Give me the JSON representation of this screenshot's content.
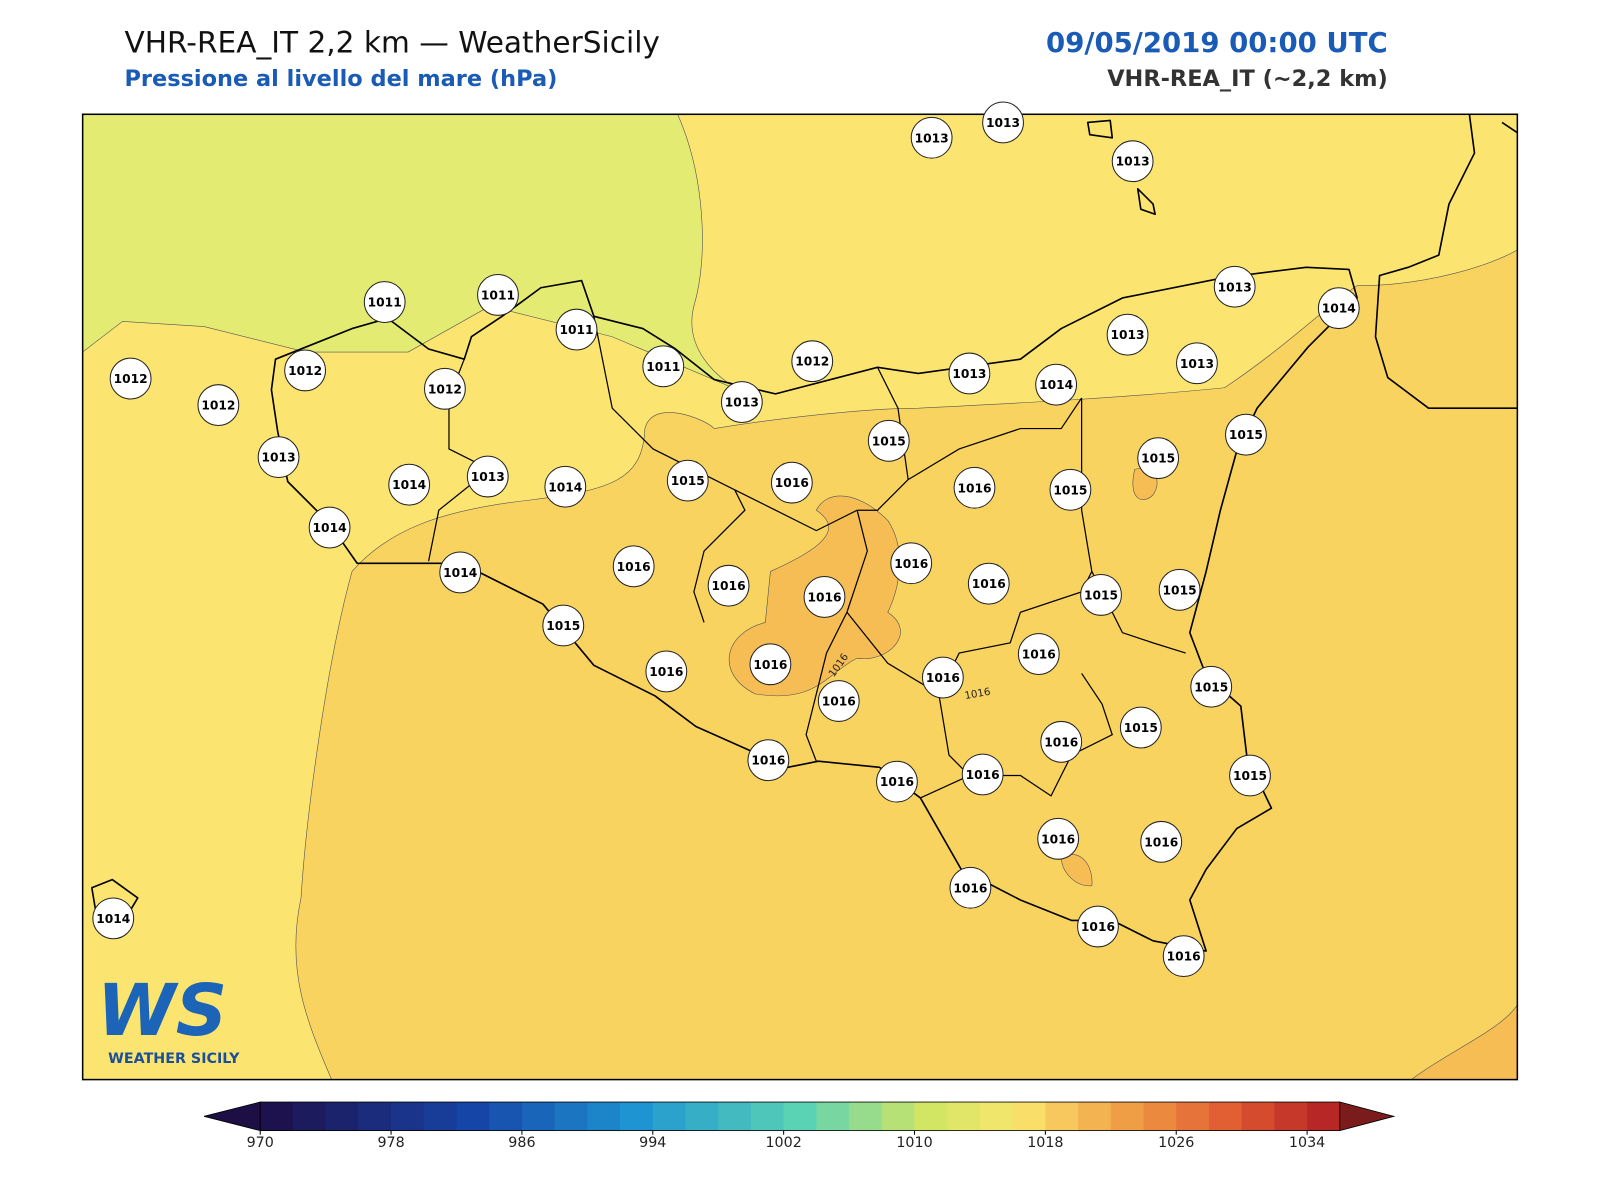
{
  "header": {
    "title": "VHR-REA_IT 2,2 km — WeatherSicily",
    "subtitle": "Pressione al livello del mare (hPa)",
    "datetime": "09/05/2019 00:00 UTC",
    "model": "VHR-REA_IT (~2,2 km)"
  },
  "stations": [
    1013,
    1013,
    1013,
    1011,
    1011,
    1011,
    1012,
    1012,
    1012,
    1011,
    1013,
    1012,
    1013,
    1014,
    1013,
    1013,
    1013,
    1014,
    1012,
    1013,
    1014,
    1013,
    1014,
    1015,
    1016,
    1015,
    1016,
    1015,
    1015,
    1015,
    1014,
    1014,
    1016,
    1016,
    1016,
    1016,
    1016,
    1015,
    1015,
    1015,
    1016,
    1016,
    1016,
    1016,
    1016,
    1015,
    1016,
    1015,
    1016,
    1016,
    1016,
    1015,
    1016,
    1016,
    1016,
    1016,
    1016,
    1014
  ],
  "contour_labels": [
    1016,
    1016
  ],
  "colorbar": {
    "range": [
      970,
      1036
    ],
    "step": 2,
    "ticks": [
      970,
      978,
      986,
      994,
      1002,
      1010,
      1018,
      1026,
      1034
    ]
  },
  "logo": {
    "mark": "WS",
    "name": "WEATHER SICILY"
  }
}
